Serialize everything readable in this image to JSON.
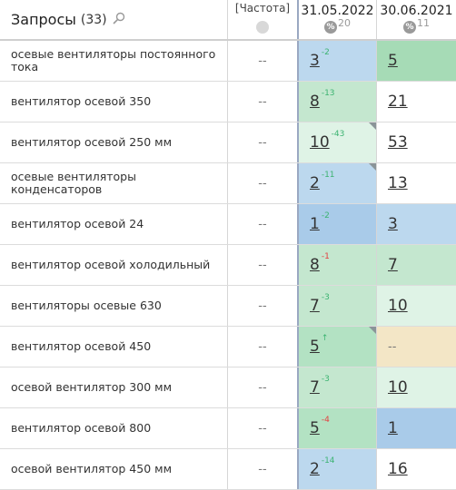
{
  "header": {
    "title": "Запросы",
    "count": "(33)",
    "freq_label": "[Частота]",
    "date1": "31.05.2022",
    "date1_count": "20",
    "date2": "30.06.2021",
    "date2_count": "11",
    "pct_symbol": "%"
  },
  "colors": {
    "light_blue": "#bcd8ee",
    "blue": "#a9cbe9",
    "light_green": "#cdebd8",
    "green": "#b3e2c3",
    "mid_green": "#a6dbb6",
    "very_light_green": "#dff3e6",
    "beige": "#f3e6c6",
    "white": "#ffffff"
  },
  "rows": [
    {
      "query": "осевые вентиляторы постоянного тока",
      "freq": "--",
      "d1": {
        "pos": "3",
        "delta": "-2",
        "dir": "up",
        "bg": "#bcd8ee",
        "corner": false
      },
      "d2": {
        "pos": "5",
        "bg": "#a6dbb6"
      }
    },
    {
      "query": "вентилятор осевой 350",
      "freq": "--",
      "d1": {
        "pos": "8",
        "delta": "-13",
        "dir": "up",
        "bg": "#c4e7cf",
        "corner": false
      },
      "d2": {
        "pos": "21",
        "bg": "#ffffff"
      }
    },
    {
      "query": "вентилятор осевой 250 мм",
      "freq": "--",
      "d1": {
        "pos": "10",
        "delta": "-43",
        "dir": "up",
        "bg": "#dff3e6",
        "corner": true
      },
      "d2": {
        "pos": "53",
        "bg": "#ffffff"
      }
    },
    {
      "query": "осевые вентиляторы конденсаторов",
      "freq": "--",
      "d1": {
        "pos": "2",
        "delta": "-11",
        "dir": "up",
        "bg": "#bcd8ee",
        "corner": true
      },
      "d2": {
        "pos": "13",
        "bg": "#ffffff"
      }
    },
    {
      "query": "вентилятор осевой 24",
      "freq": "--",
      "d1": {
        "pos": "1",
        "delta": "-2",
        "dir": "up",
        "bg": "#a9cbe9",
        "corner": false
      },
      "d2": {
        "pos": "3",
        "bg": "#bcd8ee"
      }
    },
    {
      "query": "вентилятор осевой холодильный",
      "freq": "--",
      "d1": {
        "pos": "8",
        "delta": "-1",
        "dir": "down",
        "bg": "#c4e7cf",
        "corner": false
      },
      "d2": {
        "pos": "7",
        "bg": "#c4e7cf"
      }
    },
    {
      "query": "вентиляторы осевые 630",
      "freq": "--",
      "d1": {
        "pos": "7",
        "delta": "-3",
        "dir": "up",
        "bg": "#c4e7cf",
        "corner": false
      },
      "d2": {
        "pos": "10",
        "bg": "#dff3e6"
      }
    },
    {
      "query": "вентилятор осевой 450",
      "freq": "--",
      "d1": {
        "pos": "5",
        "delta": "↑",
        "dir": "up",
        "bg": "#b3e2c3",
        "corner": true
      },
      "d2": {
        "pos": "--",
        "bg": "#f3e6c6"
      }
    },
    {
      "query": "осевой вентилятор 300 мм",
      "freq": "--",
      "d1": {
        "pos": "7",
        "delta": "-3",
        "dir": "up",
        "bg": "#c4e7cf",
        "corner": false
      },
      "d2": {
        "pos": "10",
        "bg": "#dff3e6"
      }
    },
    {
      "query": "вентилятор осевой 800",
      "freq": "--",
      "d1": {
        "pos": "5",
        "delta": "-4",
        "dir": "down",
        "bg": "#b3e2c3",
        "corner": false
      },
      "d2": {
        "pos": "1",
        "bg": "#a9cbe9"
      }
    },
    {
      "query": "осевой вентилятор 450 мм",
      "freq": "--",
      "d1": {
        "pos": "2",
        "delta": "-14",
        "dir": "up",
        "bg": "#bcd8ee",
        "corner": false
      },
      "d2": {
        "pos": "16",
        "bg": "#ffffff"
      }
    }
  ]
}
